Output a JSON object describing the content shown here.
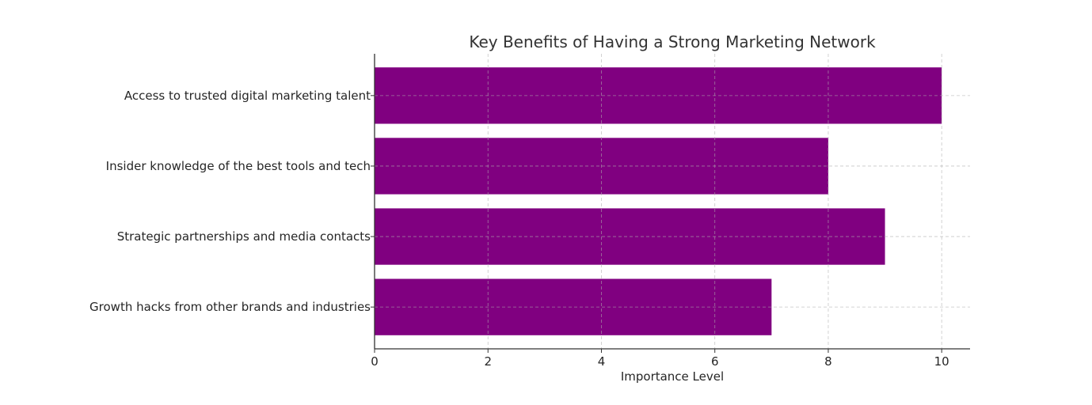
{
  "chart_data": {
    "type": "bar",
    "orientation": "horizontal",
    "title": "Key Benefits of Having a Strong Marketing Network",
    "xlabel": "Importance Level",
    "ylabel": "",
    "categories": [
      "Access to trusted digital marketing talent",
      "Insider knowledge of the best tools and tech",
      "Strategic partnerships and media contacts",
      "Growth hacks from other brands and industries"
    ],
    "values": [
      10,
      8,
      9,
      7
    ],
    "xlim": [
      0,
      10.5
    ],
    "xticks": [
      "0",
      "2",
      "4",
      "6",
      "8",
      "10"
    ],
    "grid": true,
    "bar_color": "#800080"
  }
}
